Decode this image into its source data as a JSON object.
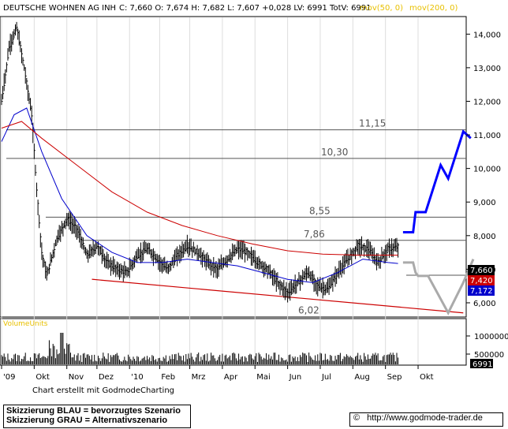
{
  "chart_data": {
    "type": "line",
    "header": {
      "title": "DEUTSCHE WOHNEN AG INH",
      "quote": "C: 7,660  O: 7,674  H: 7,682  L: 7,607  +0,028  LV: 6991  TotV: 6991",
      "ma50_label": "mov(50, 0)",
      "ma200_label": "mov(200, 0)"
    },
    "x_ticks": [
      "'09",
      "Okt",
      "Nov",
      "Dez",
      "'10",
      "Feb",
      "Mrz",
      "Apr",
      "Mai",
      "Jun",
      "Jul",
      "Aug",
      "Sep",
      "Okt"
    ],
    "y_ticks": [
      "14,000",
      "13,000",
      "12,000",
      "11,000",
      "10,000",
      "9,000",
      "8,000",
      "7,000",
      "6,000"
    ],
    "ylim": [
      5.6,
      14.5
    ],
    "volume_ticks": [
      "1000000",
      "500000"
    ],
    "volume_label": "VolumeUnits",
    "volume_last": "6991",
    "horizontal_levels": [
      {
        "label": "11,15",
        "value": 11.15
      },
      {
        "label": "10,30",
        "value": 10.3
      },
      {
        "label": "8,55",
        "value": 8.55
      },
      {
        "label": "7,86",
        "value": 7.86
      },
      {
        "label": "6,02",
        "value": 6.02
      }
    ],
    "price_badges": [
      {
        "label": "7,660",
        "color": "#000000"
      },
      {
        "label": "7,420",
        "color": "#cc0000"
      },
      {
        "label": "7,172",
        "color": "#0000cc"
      }
    ],
    "series": [
      {
        "name": "",
        "color": "#000000",
        "points": [
          [
            0,
            12.0
          ],
          [
            3,
            13.6
          ],
          [
            6,
            14.2
          ],
          [
            9,
            13.0
          ],
          [
            12,
            11.6
          ],
          [
            14,
            9.4
          ],
          [
            16,
            7.5
          ],
          [
            18,
            6.8
          ],
          [
            22,
            7.9
          ],
          [
            26,
            8.5
          ],
          [
            30,
            8.2
          ],
          [
            34,
            7.4
          ],
          [
            38,
            7.7
          ],
          [
            42,
            7.2
          ],
          [
            46,
            7.0
          ],
          [
            50,
            6.9
          ],
          [
            54,
            7.4
          ],
          [
            58,
            7.6
          ],
          [
            62,
            7.3
          ],
          [
            66,
            7.0
          ],
          [
            70,
            7.4
          ],
          [
            74,
            7.7
          ],
          [
            78,
            7.5
          ],
          [
            82,
            7.2
          ],
          [
            86,
            7.0
          ],
          [
            90,
            7.3
          ],
          [
            94,
            7.6
          ],
          [
            98,
            7.5
          ],
          [
            102,
            7.2
          ],
          [
            106,
            7.0
          ],
          [
            110,
            6.6
          ],
          [
            114,
            6.3
          ],
          [
            118,
            6.6
          ],
          [
            122,
            6.9
          ],
          [
            126,
            6.5
          ],
          [
            130,
            6.4
          ],
          [
            134,
            6.9
          ],
          [
            138,
            7.3
          ],
          [
            142,
            7.7
          ],
          [
            146,
            7.6
          ],
          [
            150,
            7.2
          ],
          [
            154,
            7.6
          ],
          [
            158,
            7.66
          ]
        ]
      },
      {
        "name": "",
        "color": "#0000cc",
        "points": [
          [
            0,
            10.8
          ],
          [
            5,
            11.6
          ],
          [
            10,
            11.8
          ],
          [
            16,
            10.5
          ],
          [
            24,
            9.1
          ],
          [
            34,
            8.0
          ],
          [
            44,
            7.5
          ],
          [
            54,
            7.2
          ],
          [
            64,
            7.2
          ],
          [
            74,
            7.3
          ],
          [
            84,
            7.2
          ],
          [
            94,
            7.1
          ],
          [
            104,
            6.9
          ],
          [
            114,
            6.7
          ],
          [
            124,
            6.6
          ],
          [
            134,
            6.9
          ],
          [
            144,
            7.3
          ],
          [
            154,
            7.2
          ],
          [
            158,
            7.17
          ]
        ]
      },
      {
        "name": "",
        "color": "#cc0000",
        "points": [
          [
            0,
            11.2
          ],
          [
            8,
            11.4
          ],
          [
            16,
            10.9
          ],
          [
            30,
            10.1
          ],
          [
            44,
            9.3
          ],
          [
            58,
            8.7
          ],
          [
            72,
            8.3
          ],
          [
            86,
            8.0
          ],
          [
            100,
            7.75
          ],
          [
            114,
            7.55
          ],
          [
            128,
            7.45
          ],
          [
            142,
            7.42
          ],
          [
            158,
            7.42
          ]
        ]
      }
    ],
    "scenarios": [
      {
        "name": "BLAU",
        "color": "#0000ff",
        "points": [
          [
            160,
            8.1
          ],
          [
            164,
            8.1
          ],
          [
            165,
            8.7
          ],
          [
            169,
            8.7
          ],
          [
            175,
            10.1
          ],
          [
            178,
            9.7
          ],
          [
            184,
            11.1
          ],
          [
            187,
            10.9
          ]
        ]
      },
      {
        "name": "GRAU",
        "color": "#aaaaaa",
        "points": [
          [
            160,
            7.2
          ],
          [
            164,
            7.2
          ],
          [
            165,
            6.9
          ],
          [
            166,
            6.8
          ],
          [
            170,
            6.8
          ],
          [
            178,
            5.7
          ],
          [
            184,
            6.6
          ],
          [
            188,
            7.3
          ]
        ]
      }
    ],
    "trendline": {
      "color": "#cc0000",
      "start": [
        36,
        6.7
      ],
      "end": [
        184,
        5.7
      ]
    }
  },
  "footer": {
    "credit": "Chart erstellt mit GodmodeCharting",
    "legend_blue": "Skizzierung BLAU = bevorzugtes Szenario",
    "legend_gray": "Skizzierung GRAU = Alternativszenario",
    "copyright": "©",
    "website": "http://www.godmode-trader.de"
  }
}
